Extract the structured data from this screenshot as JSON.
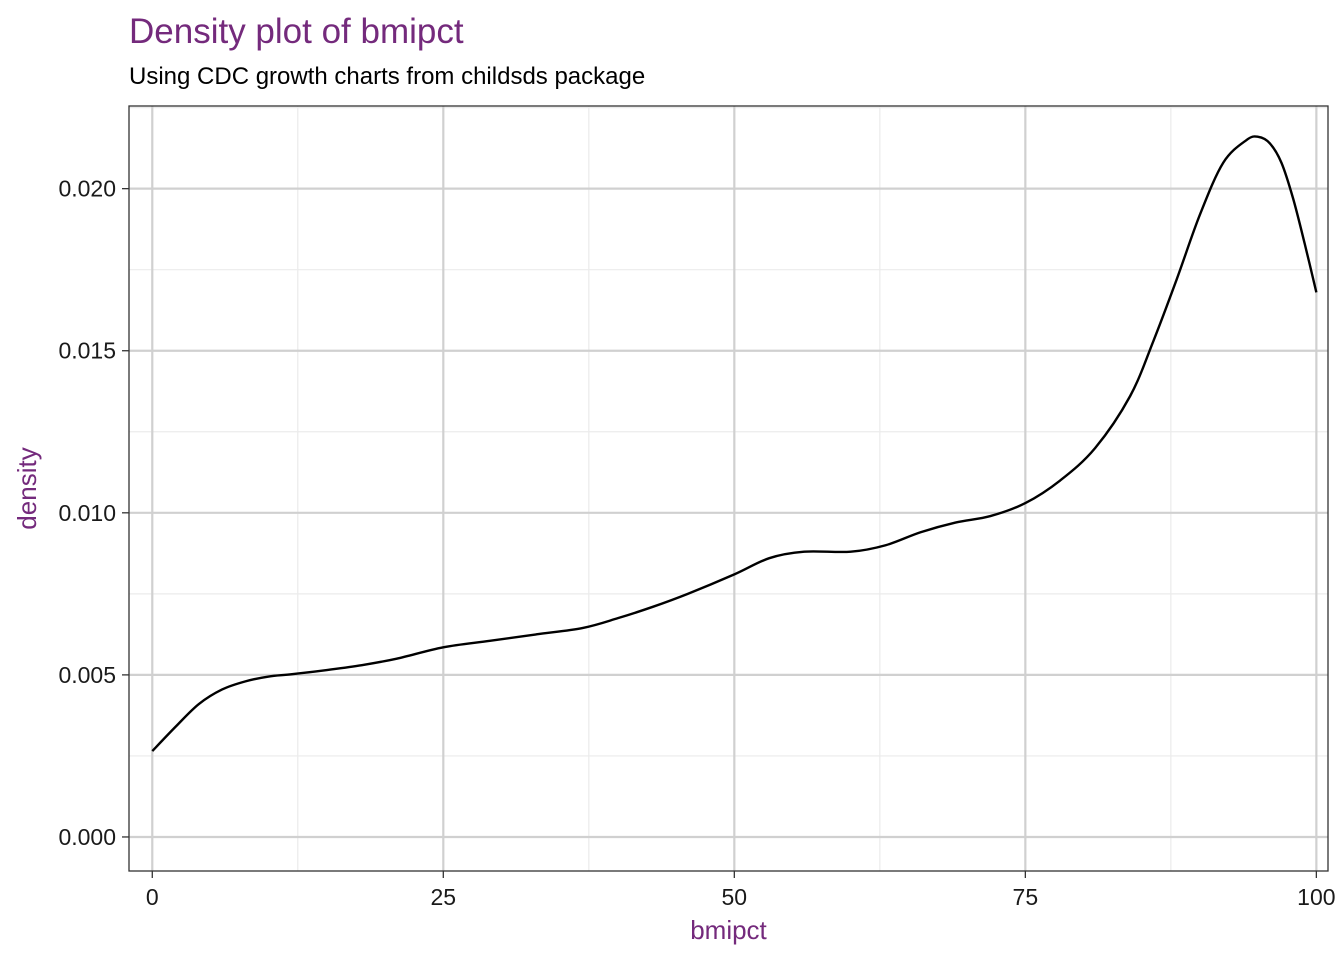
{
  "chart_data": {
    "type": "line",
    "title": "Density plot of bmipct",
    "subtitle": "Using CDC growth charts from childsds package",
    "xlabel": "bmipct",
    "ylabel": "density",
    "xlim": [
      -2,
      101
    ],
    "ylim": [
      -0.00105,
      0.02255
    ],
    "x_ticks": [
      0,
      25,
      50,
      75,
      100
    ],
    "x_tick_labels": [
      "0",
      "25",
      "50",
      "75",
      "100"
    ],
    "y_ticks": [
      0.0,
      0.005,
      0.01,
      0.015,
      0.02
    ],
    "y_tick_labels": [
      "0.000",
      "0.005",
      "0.010",
      "0.015",
      "0.020"
    ],
    "grid": true,
    "title_color": "#742a7c",
    "axis_title_color": "#742a7c",
    "line_color": "#000000",
    "series": [
      {
        "x": [
          0,
          2,
          4,
          6,
          8,
          10,
          12,
          15,
          18,
          21,
          25,
          29,
          33,
          37,
          40,
          43,
          46,
          50,
          53,
          56,
          60,
          63,
          66,
          69,
          72,
          75,
          78,
          81,
          84,
          86,
          88,
          90,
          92,
          94,
          95,
          96,
          97,
          98,
          99,
          100
        ],
        "y": [
          0.00265,
          0.0034,
          0.0041,
          0.00455,
          0.0048,
          0.00495,
          0.00502,
          0.00515,
          0.0053,
          0.0055,
          0.00585,
          0.00605,
          0.00625,
          0.00645,
          0.00675,
          0.0071,
          0.0075,
          0.0081,
          0.0086,
          0.0088,
          0.0088,
          0.009,
          0.0094,
          0.0097,
          0.0099,
          0.0103,
          0.011,
          0.012,
          0.0136,
          0.0153,
          0.0172,
          0.0192,
          0.0208,
          0.0215,
          0.0216,
          0.0214,
          0.0208,
          0.0197,
          0.0183,
          0.0168
        ]
      }
    ]
  }
}
